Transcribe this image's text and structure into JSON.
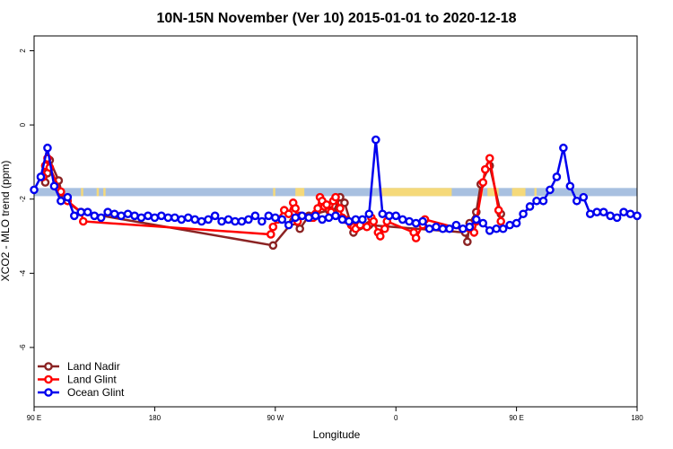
{
  "chart_data": {
    "type": "line",
    "title": "10N-15N November (Ver 10)   2015-01-01 to 2020-12-18",
    "xlabel": "Longitude",
    "ylabel": "XCO2 - MLO trend (ppm)",
    "xlim": [
      -90,
      180
    ],
    "ylim": [
      -7.6,
      2.4
    ],
    "x_ticks": [
      {
        "value": -90,
        "label": "90 E"
      },
      {
        "value": -36,
        "label": "180"
      },
      {
        "value": 18,
        "label": "90 W"
      },
      {
        "value": 72,
        "label": "0"
      },
      {
        "value": 126,
        "label": "90 E"
      },
      {
        "value": 180,
        "label": "180"
      }
    ],
    "y_ticks": [
      {
        "value": 2,
        "label": "2"
      },
      {
        "value": 0,
        "label": "0"
      },
      {
        "value": -2,
        "label": "-2"
      },
      {
        "value": -4,
        "label": "-4"
      },
      {
        "value": -6,
        "label": "-6"
      }
    ],
    "background_band": {
      "y_range": [
        -1.92,
        -1.7
      ],
      "color": "#a8c0e0",
      "land_color": "#f5d97a",
      "land_segments": [
        [
          -69,
          -68
        ],
        [
          -62,
          -61
        ],
        [
          -59,
          -58
        ],
        [
          17,
          18
        ],
        [
          27,
          31
        ],
        [
          65,
          97
        ],
        [
          109,
          111
        ],
        [
          113,
          118
        ],
        [
          124,
          130
        ],
        [
          134,
          135
        ]
      ]
    },
    "series": [
      {
        "name": "Land Nadir",
        "color": "#8b2323",
        "x": [
          -85,
          -84,
          -83,
          -79,
          -77,
          -69,
          17,
          26,
          29,
          33,
          34,
          36,
          42,
          44,
          47,
          49,
          53,
          60,
          103,
          104,
          105,
          108,
          110,
          114,
          119
        ],
        "y": [
          -1.55,
          -1.3,
          -0.95,
          -1.5,
          -2.0,
          -2.35,
          -3.25,
          -2.6,
          -2.8,
          -2.45,
          -2.5,
          -2.4,
          -2.3,
          -2.35,
          -1.95,
          -2.1,
          -2.9,
          -2.7,
          -2.9,
          -3.15,
          -2.65,
          -2.35,
          -1.6,
          -1.1,
          -2.4
        ]
      },
      {
        "name": "Land Glint",
        "color": "#ff0000",
        "x": [
          -86,
          -85,
          -84,
          -83,
          -78,
          -75,
          -69,
          -68,
          16,
          17,
          19,
          22,
          24,
          26,
          27,
          28,
          29,
          35,
          36,
          37,
          38,
          39,
          40,
          41,
          43,
          44,
          45,
          47,
          48,
          49,
          52,
          53,
          54,
          56,
          59,
          61,
          62,
          64,
          65,
          67,
          68,
          80,
          81,
          84,
          85,
          107,
          108,
          111,
          112,
          114,
          118,
          119
        ],
        "y": [
          -1.4,
          -1.1,
          -0.9,
          -1.15,
          -1.8,
          -2.05,
          -2.35,
          -2.6,
          -2.95,
          -2.75,
          -2.55,
          -2.3,
          -2.4,
          -2.1,
          -2.25,
          -2.6,
          -2.45,
          -2.5,
          -2.4,
          -2.25,
          -1.95,
          -2.05,
          -2.2,
          -2.15,
          -2.35,
          -2.05,
          -1.95,
          -2.25,
          -2.5,
          -2.55,
          -2.7,
          -2.75,
          -2.8,
          -2.7,
          -2.75,
          -2.5,
          -2.6,
          -2.9,
          -3.0,
          -2.8,
          -2.6,
          -2.9,
          -3.05,
          -2.7,
          -2.55,
          -2.9,
          -2.6,
          -1.55,
          -1.2,
          -0.9,
          -2.3,
          -2.6
        ]
      },
      {
        "name": "Ocean Glint",
        "color": "#0000ee",
        "x": [
          -90,
          -87,
          -84,
          -81,
          -78,
          -75,
          -72,
          -69,
          -66,
          -63,
          -60,
          -57,
          -54,
          -51,
          -48,
          -45,
          -42,
          -39,
          -36,
          -33,
          -30,
          -27,
          -24,
          -21,
          -18,
          -15,
          -12,
          -9,
          -6,
          -3,
          0,
          3,
          6,
          9,
          12,
          15,
          18,
          21,
          24,
          27,
          30,
          33,
          36,
          39,
          42,
          45,
          48,
          51,
          54,
          57,
          60,
          63,
          66,
          69,
          72,
          75,
          78,
          81,
          84,
          87,
          90,
          93,
          96,
          99,
          102,
          105,
          108,
          111,
          114,
          117,
          120,
          123,
          126,
          129,
          132,
          135,
          138,
          141,
          144,
          147,
          150,
          153,
          156,
          159,
          162,
          165,
          168,
          171,
          174,
          177,
          180
        ],
        "y": [
          -1.75,
          -1.4,
          -0.62,
          -1.65,
          -2.05,
          -1.95,
          -2.45,
          -2.35,
          -2.35,
          -2.45,
          -2.5,
          -2.35,
          -2.4,
          -2.45,
          -2.4,
          -2.45,
          -2.5,
          -2.45,
          -2.5,
          -2.45,
          -2.5,
          -2.5,
          -2.55,
          -2.5,
          -2.55,
          -2.6,
          -2.55,
          -2.45,
          -2.6,
          -2.55,
          -2.6,
          -2.6,
          -2.55,
          -2.45,
          -2.6,
          -2.45,
          -2.5,
          -2.55,
          -2.7,
          -2.5,
          -2.45,
          -2.5,
          -2.45,
          -2.55,
          -2.5,
          -2.45,
          -2.55,
          -2.6,
          -2.55,
          -2.55,
          -2.4,
          -0.4,
          -2.4,
          -2.45,
          -2.45,
          -2.55,
          -2.6,
          -2.65,
          -2.6,
          -2.8,
          -2.75,
          -2.8,
          -2.8,
          -2.7,
          -2.8,
          -2.75,
          -2.55,
          -2.65,
          -2.85,
          -2.8,
          -2.8,
          -2.7,
          -2.65,
          -2.4,
          -2.2,
          -2.05,
          -2.05,
          -1.75,
          -1.4,
          -0.62,
          -1.65,
          -2.05,
          -1.95,
          -2.4,
          -2.35,
          -2.35,
          -2.45,
          -2.5,
          -2.35,
          -2.4,
          -2.45
        ]
      }
    ],
    "legend": {
      "position": "bottom-left",
      "entries": [
        "Land Nadir",
        "Land Glint",
        "Ocean Glint"
      ]
    }
  }
}
